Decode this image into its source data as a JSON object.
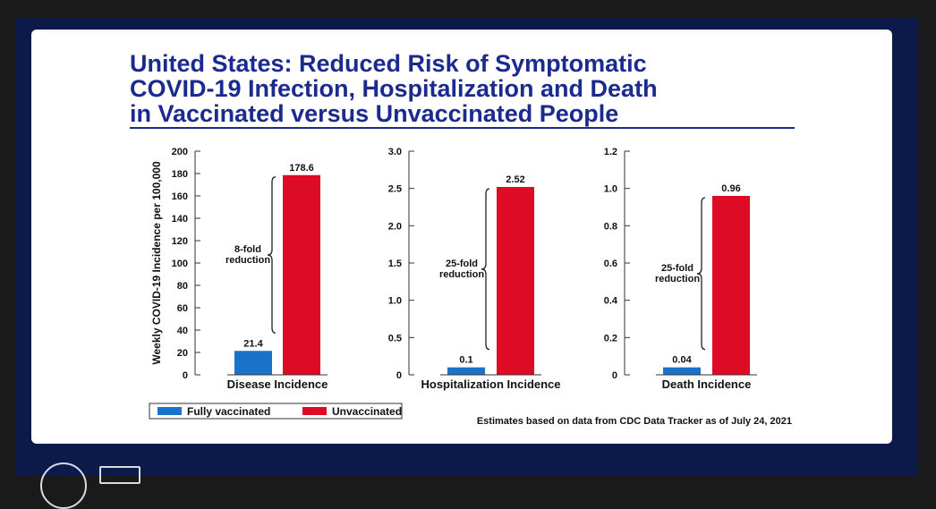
{
  "slide": {
    "title_lines": [
      "United States: Reduced Risk of Symptomatic",
      "COVID-19 Infection, Hospitalization and Death",
      "in Vaccinated versus Unvaccinated People"
    ]
  },
  "colors": {
    "vaccinated": "#1a73c9",
    "unvaccinated": "#dd0b25",
    "title": "#1b2a8f",
    "slide_bg": "#ffffff",
    "frame_bg": "#0c1a4a"
  },
  "chart_data": [
    {
      "type": "bar",
      "title": "",
      "xlabel": "Disease Incidence",
      "ylabel": "Weekly COVID-19 Incidence per 100,000",
      "ylim": [
        0,
        200
      ],
      "yticks": [
        0,
        20,
        40,
        60,
        80,
        100,
        120,
        140,
        160,
        180,
        200
      ],
      "ytick_labels": [
        "0",
        "20",
        "40",
        "60",
        "80",
        "100",
        "120",
        "140",
        "160",
        "180",
        "200"
      ],
      "categories": [
        "Fully vaccinated",
        "Unvaccinated"
      ],
      "values": [
        21.4,
        178.6
      ],
      "value_labels": [
        "21.4",
        "178.6"
      ],
      "annotation": [
        "8-fold",
        "reduction"
      ]
    },
    {
      "type": "bar",
      "title": "",
      "xlabel": "Hospitalization Incidence",
      "ylabel": "",
      "ylim": [
        0,
        3.0
      ],
      "yticks": [
        0,
        0.5,
        1.0,
        1.5,
        2.0,
        2.5,
        3.0
      ],
      "ytick_labels": [
        "0",
        "0.5",
        "1.0",
        "1.5",
        "2.0",
        "2.5",
        "3.0"
      ],
      "categories": [
        "Fully vaccinated",
        "Unvaccinated"
      ],
      "values": [
        0.1,
        2.52
      ],
      "value_labels": [
        "0.1",
        "2.52"
      ],
      "annotation": [
        "25-fold",
        "reduction"
      ]
    },
    {
      "type": "bar",
      "title": "",
      "xlabel": "Death Incidence",
      "ylabel": "",
      "ylim": [
        0,
        1.2
      ],
      "yticks": [
        0,
        0.2,
        0.4,
        0.6,
        0.8,
        1.0,
        1.2
      ],
      "ytick_labels": [
        "0",
        "0.2",
        "0.4",
        "0.6",
        "0.8",
        "1.0",
        "1.2"
      ],
      "categories": [
        "Fully vaccinated",
        "Unvaccinated"
      ],
      "values": [
        0.04,
        0.96
      ],
      "value_labels": [
        "0.04",
        "0.96"
      ],
      "annotation": [
        "25-fold",
        "reduction"
      ]
    }
  ],
  "legend": [
    {
      "label": "Fully vaccinated",
      "color": "#1a73c9"
    },
    {
      "label": "Unvaccinated",
      "color": "#dd0b25"
    }
  ],
  "footnote": "Estimates based on data from CDC Data Tracker as of July 24, 2021"
}
